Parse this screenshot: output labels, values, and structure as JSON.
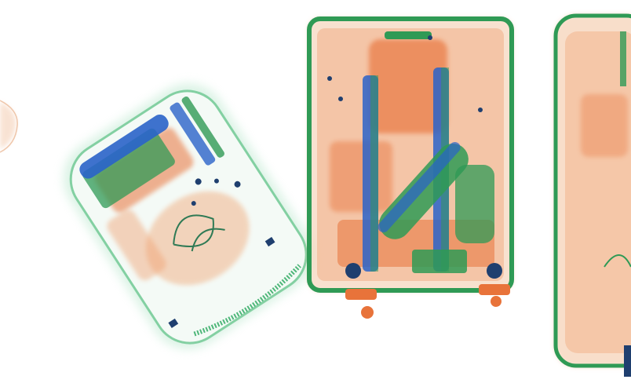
{
  "image": {
    "kind": "x-ray baggage scan",
    "colors": {
      "background": "#ffffff",
      "organic": "#e8733a",
      "mixed": "#2f9a55",
      "metal": "#2a63c9",
      "glow": "#bfe8cf"
    },
    "objects": [
      {
        "name": "partial-bag-left"
      },
      {
        "name": "backpack"
      },
      {
        "name": "suitcase-center"
      },
      {
        "name": "suitcase-right"
      }
    ]
  }
}
